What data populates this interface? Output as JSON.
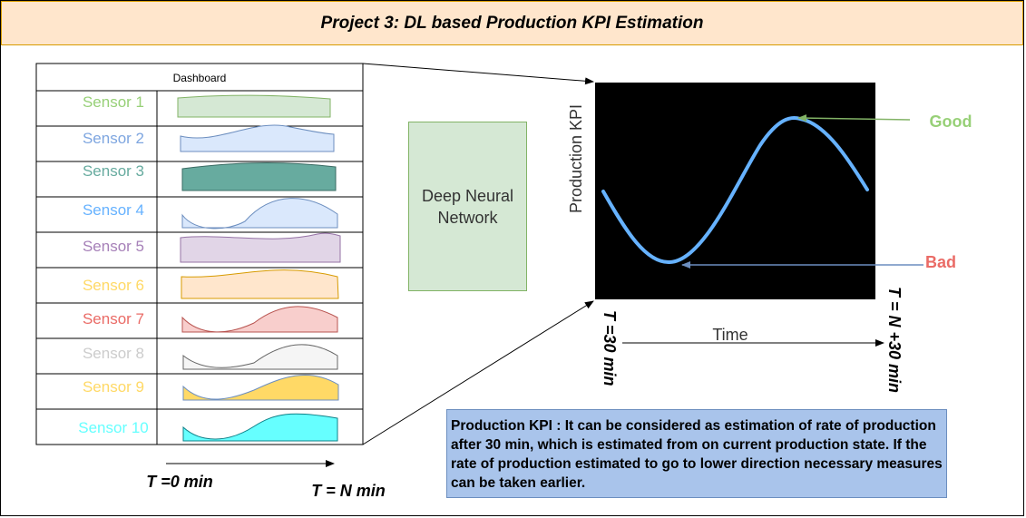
{
  "title": "Project 3: DL based Production KPI Estimation",
  "dashboard": {
    "header": "Dashboard",
    "sensors": [
      {
        "label": "Sensor 1",
        "color": "#97d077",
        "fill": "#d5e8d4",
        "stroke": "#82b366"
      },
      {
        "label": "Sensor 2",
        "color": "#7ea6e0",
        "fill": "#dae8fc",
        "stroke": "#6c8ebf"
      },
      {
        "label": "Sensor 3",
        "color": "#67ab9f",
        "fill": "#67ab9f",
        "stroke": "#3a6b63"
      },
      {
        "label": "Sensor 4",
        "color": "#66b2ff",
        "fill": "#dae8fc",
        "stroke": "#6c8ebf"
      },
      {
        "label": "Sensor 5",
        "color": "#a680b8",
        "fill": "#e1d5e7",
        "stroke": "#9673a6"
      },
      {
        "label": "Sensor 6",
        "color": "#ffd966",
        "fill": "#ffe6cc",
        "stroke": "#d79b00"
      },
      {
        "label": "Sensor 7",
        "color": "#ea6b66",
        "fill": "#f8cecc",
        "stroke": "#b85450"
      },
      {
        "label": "Sensor 8",
        "color": "#cccccc",
        "fill": "#f5f5f5",
        "stroke": "#666666"
      },
      {
        "label": "Sensor 9",
        "color": "#ffd966",
        "fill": "#ffd966",
        "stroke": "#6c8ebf"
      },
      {
        "label": "Sensor 10",
        "color": "#66ffff",
        "fill": "#66ffff",
        "stroke": "#0e8088"
      }
    ]
  },
  "time_start": "T =0 min",
  "time_end": "T = N min",
  "dnn_label": "Deep Neural\nNetwork",
  "kpi_chart": {
    "ylabel": "Production KPI",
    "xlabel": "Time",
    "x_start": "T =30 min",
    "x_end": "T = N +30 min",
    "curve_color": "#66b2ff",
    "background": "#000000",
    "good_label": "Good",
    "good_color": "#97d077",
    "bad_label": "Bad",
    "bad_color": "#ea6b66"
  },
  "note": "Production KPI : It can be considered as estimation of rate of production after 30 min, which is estimated from on current production state. If the rate of production estimated to go to lower direction necessary measures can be taken earlier."
}
